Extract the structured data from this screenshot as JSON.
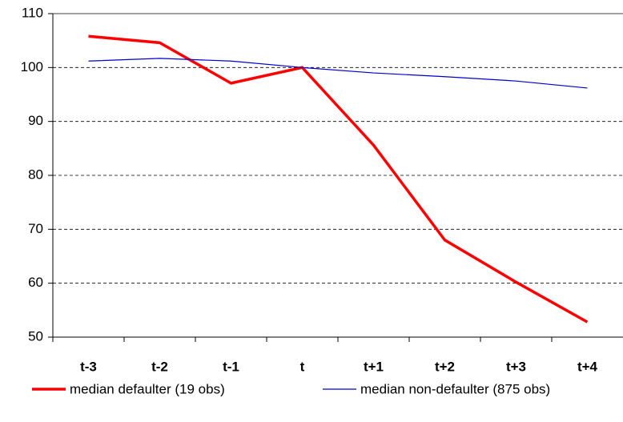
{
  "chart_data": {
    "type": "line",
    "categories": [
      "t-3",
      "t-2",
      "t-1",
      "t",
      "t+1",
      "t+2",
      "t+3",
      "t+4"
    ],
    "series": [
      {
        "name": "median defaulter (19 obs)",
        "color": "#ff0000",
        "values": [
          105.8,
          104.6,
          97.1,
          100,
          85.6,
          68.0,
          60.2,
          52.8
        ]
      },
      {
        "name": "median non-defaulter (875 obs)",
        "color": "#0000cc",
        "values": [
          101.2,
          101.7,
          101.2,
          100,
          99.0,
          98.3,
          97.5,
          96.2
        ]
      }
    ],
    "ylim": [
      50,
      110
    ],
    "yticks": [
      50,
      60,
      70,
      80,
      90,
      100,
      110
    ],
    "grid": true,
    "legend": "bottom"
  }
}
